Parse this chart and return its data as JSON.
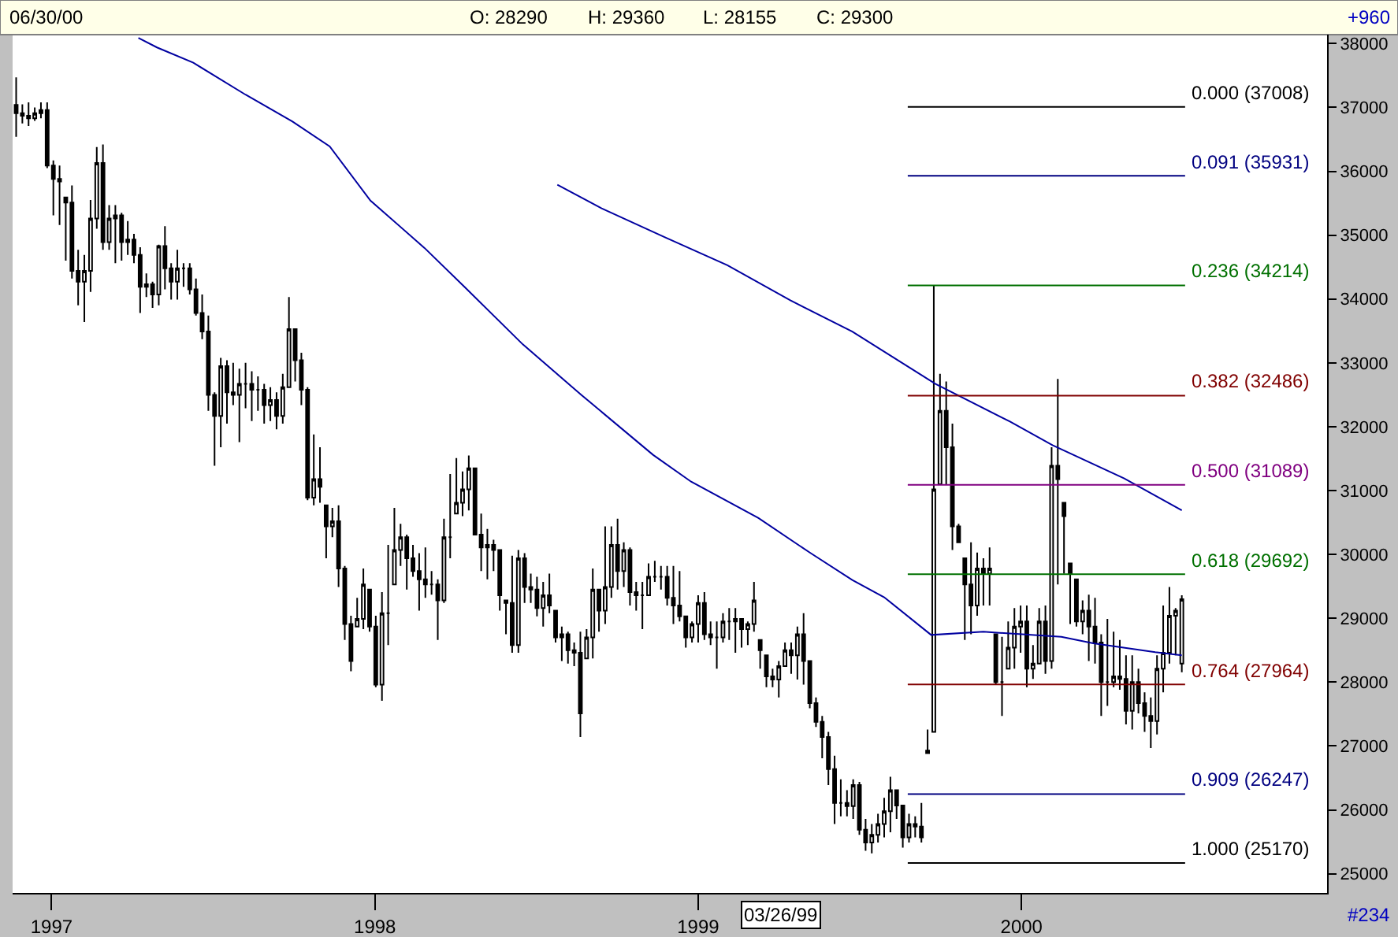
{
  "chart_data": {
    "type": "candlestick",
    "color": "#000000",
    "x": [
      "1996-11-22",
      "1996-11-29",
      "1996-12-06",
      "1996-12-13",
      "1996-12-20",
      "1996-12-27",
      "1997-01-03",
      "1997-01-10",
      "1997-01-17",
      "1997-01-24",
      "1997-01-31",
      "1997-02-07",
      "1997-02-14",
      "1997-02-21",
      "1997-02-28",
      "1997-03-07",
      "1997-03-14",
      "1997-03-21",
      "1997-03-28",
      "1997-04-04",
      "1997-04-11",
      "1997-04-18",
      "1997-04-25",
      "1997-05-02",
      "1997-05-09",
      "1997-05-16",
      "1997-05-23",
      "1997-05-30",
      "1997-06-06",
      "1997-06-13",
      "1997-06-20",
      "1997-06-27",
      "1997-07-04",
      "1997-07-11",
      "1997-07-18",
      "1997-07-25",
      "1997-08-01",
      "1997-08-08",
      "1997-08-15",
      "1997-08-22",
      "1997-08-29",
      "1997-09-05",
      "1997-09-12",
      "1997-09-19",
      "1997-09-26",
      "1997-10-03",
      "1997-10-10",
      "1997-10-17",
      "1997-10-24",
      "1997-10-31",
      "1997-11-07",
      "1997-11-14",
      "1997-11-21",
      "1997-11-28",
      "1997-12-05",
      "1997-12-12",
      "1997-12-19",
      "1997-12-26",
      "1998-01-02",
      "1998-01-09",
      "1998-01-16",
      "1998-01-23",
      "1998-01-30",
      "1998-02-06",
      "1998-02-13",
      "1998-02-20",
      "1998-02-27",
      "1998-03-06",
      "1998-03-13",
      "1998-03-20",
      "1998-03-27",
      "1998-04-03",
      "1998-04-10",
      "1998-04-17",
      "1998-04-24",
      "1998-05-01",
      "1998-05-08",
      "1998-05-15",
      "1998-05-22",
      "1998-05-29",
      "1998-06-05",
      "1998-06-12",
      "1998-06-19",
      "1998-06-26",
      "1998-07-03",
      "1998-07-10",
      "1998-07-17",
      "1998-07-24",
      "1998-07-31",
      "1998-08-07",
      "1998-08-14",
      "1998-08-21",
      "1998-08-28",
      "1998-09-04",
      "1998-09-11",
      "1998-09-18",
      "1998-09-25",
      "1998-10-02",
      "1998-10-09",
      "1998-10-16",
      "1998-10-23",
      "1998-10-30",
      "1998-11-06",
      "1998-11-13",
      "1998-11-20",
      "1998-11-27",
      "1998-12-04",
      "1998-12-11",
      "1998-12-18",
      "1998-12-25",
      "1999-01-01",
      "1999-01-08",
      "1999-01-15",
      "1999-01-22",
      "1999-01-29",
      "1999-02-05",
      "1999-02-12",
      "1999-02-19",
      "1999-02-26",
      "1999-03-05",
      "1999-03-12",
      "1999-03-19",
      "1999-03-26",
      "1999-04-02",
      "1999-04-09",
      "1999-04-16",
      "1999-04-23",
      "1999-04-30",
      "1999-05-07",
      "1999-05-14",
      "1999-05-21",
      "1999-05-28",
      "1999-06-04",
      "1999-06-11",
      "1999-06-18",
      "1999-06-25",
      "1999-07-02",
      "1999-07-09",
      "1999-07-16",
      "1999-07-23",
      "1999-07-30",
      "1999-08-06",
      "1999-08-13",
      "1999-08-20",
      "1999-08-27",
      "1999-09-03",
      "1999-09-10",
      "1999-09-17",
      "1999-09-24",
      "1999-10-01",
      "1999-10-08",
      "1999-10-15",
      "1999-10-22",
      "1999-10-29",
      "1999-11-05",
      "1999-11-12",
      "1999-11-19",
      "1999-11-26",
      "1999-12-03",
      "1999-12-10",
      "1999-12-17",
      "1999-12-24",
      "1999-12-31",
      "2000-01-07",
      "2000-01-14",
      "2000-01-21",
      "2000-01-28",
      "2000-02-04",
      "2000-02-11",
      "2000-02-18",
      "2000-02-25",
      "2000-03-03",
      "2000-03-10",
      "2000-03-17",
      "2000-03-24",
      "2000-03-31",
      "2000-04-07",
      "2000-04-14",
      "2000-04-21",
      "2000-04-28",
      "2000-05-05",
      "2000-05-12",
      "2000-05-19",
      "2000-05-26",
      "2000-06-02",
      "2000-06-09",
      "2000-06-16",
      "2000-06-23",
      "2000-06-30"
    ],
    "ohlc": [
      [
        37040,
        37470,
        36540,
        36910
      ],
      [
        36910,
        37050,
        36750,
        36870
      ],
      [
        36870,
        37080,
        36710,
        36830
      ],
      [
        36830,
        37000,
        36790,
        36910
      ],
      [
        36910,
        37080,
        36830,
        36960
      ],
      [
        36960,
        37080,
        36050,
        36090
      ],
      [
        36090,
        36170,
        35310,
        35880
      ],
      [
        35880,
        36090,
        35160,
        35840
      ],
      [
        35590,
        35590,
        34600,
        35510
      ],
      [
        35510,
        35780,
        34320,
        34440
      ],
      [
        34440,
        34770,
        33900,
        34270
      ],
      [
        34270,
        34690,
        33640,
        34440
      ],
      [
        34440,
        35550,
        34110,
        35260
      ],
      [
        35260,
        36380,
        35100,
        36130
      ],
      [
        36130,
        36420,
        34770,
        34890
      ],
      [
        34890,
        35470,
        34770,
        35260
      ],
      [
        35260,
        35470,
        34560,
        35310
      ],
      [
        35310,
        35350,
        34600,
        34890
      ],
      [
        34890,
        35220,
        34690,
        34930
      ],
      [
        34930,
        35020,
        34560,
        34690
      ],
      [
        34690,
        34810,
        33780,
        34190
      ],
      [
        34190,
        34400,
        34030,
        34230
      ],
      [
        34230,
        34270,
        33860,
        34070
      ],
      [
        34070,
        34850,
        33900,
        34830
      ],
      [
        34830,
        35140,
        34150,
        34480
      ],
      [
        34480,
        34560,
        33990,
        34270
      ],
      [
        34270,
        34770,
        33990,
        34480
      ],
      [
        34480,
        34560,
        34190,
        34480
      ],
      [
        34480,
        34560,
        34070,
        34150
      ],
      [
        34150,
        34320,
        33740,
        33780
      ],
      [
        33780,
        34070,
        33370,
        33490
      ],
      [
        33490,
        33740,
        32250,
        32500
      ],
      [
        32500,
        32540,
        31390,
        32170
      ],
      [
        32170,
        33080,
        31680,
        32950
      ],
      [
        32950,
        33040,
        32050,
        32540
      ],
      [
        32540,
        33000,
        32340,
        32500
      ],
      [
        32500,
        32910,
        31760,
        32670
      ],
      [
        32670,
        33000,
        32290,
        32670
      ],
      [
        32670,
        32870,
        32090,
        32580
      ],
      [
        32580,
        32790,
        32250,
        32580
      ],
      [
        32580,
        32670,
        32050,
        32340
      ],
      [
        32340,
        32620,
        32090,
        32420
      ],
      [
        32420,
        32540,
        31960,
        32170
      ],
      [
        32170,
        32830,
        32050,
        32620
      ],
      [
        32620,
        34030,
        32620,
        33530
      ],
      [
        33530,
        33530,
        32710,
        33040
      ],
      [
        33040,
        33160,
        32340,
        32580
      ],
      [
        32580,
        32620,
        30850,
        30890
      ],
      [
        30890,
        31880,
        30770,
        31180
      ],
      [
        31180,
        31680,
        30810,
        31060
      ],
      [
        30770,
        30770,
        29940,
        30440
      ],
      [
        30440,
        30730,
        30270,
        30520
      ],
      [
        30520,
        30770,
        29490,
        29780
      ],
      [
        29780,
        29820,
        28660,
        28910
      ],
      [
        28910,
        29040,
        28170,
        28330
      ],
      [
        28870,
        29320,
        28870,
        28990
      ],
      [
        28990,
        29780,
        28830,
        29530
      ],
      [
        29450,
        29450,
        28790,
        28870
      ],
      [
        28870,
        29040,
        27920,
        27960
      ],
      [
        27960,
        29410,
        27710,
        29080
      ],
      [
        29080,
        30150,
        28580,
        29080
      ],
      [
        29530,
        30730,
        29530,
        30070
      ],
      [
        30070,
        30480,
        29820,
        30270
      ],
      [
        30270,
        30310,
        29450,
        29940
      ],
      [
        29940,
        30150,
        29650,
        29740
      ],
      [
        29740,
        30020,
        29120,
        29610
      ],
      [
        29610,
        30110,
        29320,
        29530
      ],
      [
        29530,
        29740,
        29370,
        29530
      ],
      [
        29530,
        29610,
        28660,
        29280
      ],
      [
        29280,
        30560,
        29240,
        30270
      ],
      [
        30270,
        31260,
        29940,
        30270
      ],
      [
        30640,
        31510,
        30640,
        30810
      ],
      [
        30810,
        31300,
        30600,
        31020
      ],
      [
        31020,
        31550,
        30690,
        31350
      ],
      [
        31350,
        31350,
        30310,
        30310
      ],
      [
        30310,
        30640,
        29740,
        30110
      ],
      [
        30110,
        30400,
        29610,
        30150
      ],
      [
        30150,
        30230,
        29740,
        30070
      ],
      [
        30070,
        30070,
        29120,
        29360
      ],
      [
        29280,
        29280,
        28750,
        29240
      ],
      [
        29240,
        29980,
        28460,
        28580
      ],
      [
        28580,
        30070,
        28460,
        29940
      ],
      [
        29940,
        30020,
        29240,
        29490
      ],
      [
        29490,
        29700,
        29240,
        29450
      ],
      [
        29450,
        29650,
        29030,
        29160
      ],
      [
        29160,
        29570,
        28870,
        29360
      ],
      [
        29360,
        29700,
        29080,
        29200
      ],
      [
        29120,
        29120,
        28620,
        28700
      ],
      [
        28700,
        28870,
        28330,
        28750
      ],
      [
        28750,
        28790,
        28290,
        28500
      ],
      [
        28500,
        28620,
        28250,
        28460
      ],
      [
        28460,
        28790,
        27140,
        27510
      ],
      [
        28370,
        28830,
        28370,
        28700
      ],
      [
        28700,
        29780,
        28370,
        29450
      ],
      [
        29450,
        29450,
        28790,
        29120
      ],
      [
        29120,
        30440,
        28910,
        29490
      ],
      [
        29490,
        30440,
        29320,
        30150
      ],
      [
        30150,
        30560,
        29450,
        29740
      ],
      [
        29740,
        30190,
        29490,
        30070
      ],
      [
        30070,
        30110,
        29200,
        29410
      ],
      [
        29410,
        29570,
        29120,
        29360
      ],
      [
        29360,
        29570,
        28830,
        29360
      ],
      [
        29360,
        29860,
        29360,
        29650
      ],
      [
        29650,
        29900,
        29570,
        29650
      ],
      [
        29650,
        29820,
        29450,
        29650
      ],
      [
        29650,
        29820,
        29200,
        29320
      ],
      [
        29320,
        29820,
        28910,
        29200
      ],
      [
        29200,
        29740,
        28950,
        29030
      ],
      [
        29030,
        29030,
        28540,
        28700
      ],
      [
        28700,
        28950,
        28620,
        28910
      ],
      [
        28910,
        29360,
        28620,
        29240
      ],
      [
        29240,
        29410,
        28660,
        28750
      ],
      [
        28750,
        28950,
        28580,
        28700
      ],
      [
        28700,
        28950,
        28210,
        28700
      ],
      [
        28700,
        29080,
        28620,
        28950
      ],
      [
        28950,
        29160,
        28660,
        28950
      ],
      [
        28950,
        29160,
        28460,
        28990
      ],
      [
        28990,
        28990,
        28540,
        28830
      ],
      [
        28830,
        28950,
        28580,
        28910
      ],
      [
        28910,
        29570,
        28790,
        29280
      ],
      [
        28660,
        28660,
        28210,
        28500
      ],
      [
        28420,
        28420,
        27920,
        28090
      ],
      [
        28090,
        28210,
        27920,
        28040
      ],
      [
        28040,
        28330,
        27760,
        28250
      ],
      [
        28250,
        28620,
        28250,
        28500
      ],
      [
        28500,
        28620,
        28130,
        28420
      ],
      [
        28420,
        28870,
        28040,
        28750
      ],
      [
        28750,
        29080,
        27960,
        28330
      ],
      [
        28330,
        28330,
        27590,
        27670
      ],
      [
        27670,
        27760,
        27300,
        27380
      ],
      [
        27380,
        27470,
        26810,
        27140
      ],
      [
        27140,
        27220,
        26390,
        26640
      ],
      [
        26640,
        26850,
        25780,
        26110
      ],
      [
        26110,
        26480,
        25900,
        26110
      ],
      [
        26110,
        26310,
        25900,
        26060
      ],
      [
        26060,
        26480,
        25860,
        26390
      ],
      [
        26390,
        26440,
        25610,
        25690
      ],
      [
        25690,
        25860,
        25360,
        25490
      ],
      [
        25490,
        25780,
        25320,
        25610
      ],
      [
        25610,
        25940,
        25490,
        25780
      ],
      [
        25780,
        26190,
        25570,
        25980
      ],
      [
        25980,
        26520,
        25650,
        26310
      ],
      [
        26310,
        26310,
        25860,
        26070
      ],
      [
        26070,
        26070,
        25410,
        25570
      ],
      [
        25570,
        25940,
        25490,
        25780
      ],
      [
        25780,
        25900,
        25570,
        25740
      ],
      [
        25740,
        26110,
        25490,
        25570
      ],
      [
        26890,
        27260,
        26890,
        26930
      ],
      [
        27220,
        34210,
        27220,
        31020
      ],
      [
        31100,
        32830,
        31100,
        32250
      ],
      [
        32250,
        32710,
        31100,
        31680
      ],
      [
        31680,
        32050,
        30070,
        30440
      ],
      [
        30440,
        30480,
        30190,
        30190
      ],
      [
        29940,
        29940,
        28660,
        29530
      ],
      [
        29530,
        30190,
        28750,
        29200
      ],
      [
        29200,
        30030,
        29040,
        29780
      ],
      [
        29780,
        29940,
        29200,
        29700
      ],
      [
        29700,
        30110,
        29200,
        29780
      ],
      [
        28750,
        28750,
        27960,
        28000
      ],
      [
        28000,
        28710,
        27470,
        28000
      ],
      [
        28210,
        28950,
        28210,
        28540
      ],
      [
        28540,
        29160,
        28210,
        28870
      ],
      [
        28870,
        29200,
        28460,
        28950
      ],
      [
        28950,
        29200,
        27920,
        28210
      ],
      [
        28210,
        28580,
        28050,
        28290
      ],
      [
        28290,
        29160,
        28290,
        28950
      ],
      [
        28950,
        29200,
        28130,
        28330
      ],
      [
        28330,
        31680,
        28210,
        31390
      ],
      [
        31390,
        32750,
        29530,
        31180
      ],
      [
        30810,
        30810,
        29700,
        30600
      ],
      [
        29860,
        29860,
        28910,
        29700
      ],
      [
        29610,
        29610,
        28870,
        28950
      ],
      [
        28950,
        29280,
        28750,
        29120
      ],
      [
        29120,
        29370,
        28330,
        28870
      ],
      [
        28870,
        29320,
        28290,
        28620
      ],
      [
        28620,
        28750,
        27470,
        28000
      ],
      [
        28000,
        28990,
        27630,
        28000
      ],
      [
        28000,
        28790,
        27920,
        28090
      ],
      [
        28090,
        28660,
        27880,
        28050
      ],
      [
        28050,
        28420,
        27340,
        27550
      ],
      [
        27550,
        28420,
        27260,
        28000
      ],
      [
        28000,
        28210,
        27510,
        27670
      ],
      [
        27670,
        27840,
        27220,
        27470
      ],
      [
        27470,
        27760,
        26970,
        27390
      ],
      [
        27390,
        28420,
        27180,
        28210
      ],
      [
        28210,
        29200,
        27840,
        28460
      ],
      [
        28460,
        29490,
        28290,
        29040
      ],
      [
        29040,
        29160,
        28420,
        29120
      ],
      [
        28290,
        29360,
        28155,
        29300
      ]
    ],
    "series": [
      {
        "type": "line",
        "color": "#0000a0",
        "x": [
          "1997-04-09",
          "1997-04-30",
          "1997-06-10",
          "1997-08-08",
          "1997-09-30",
          "1997-11-11",
          "1997-12-27",
          "1998-02-26",
          "1998-04-13",
          "1998-06-17",
          "1998-08-22",
          "1998-11-11",
          "1998-12-24",
          "1999-03-10",
          "1999-05-08",
          "1999-06-24",
          "1999-07-30",
          "1999-09-21",
          "1999-11-19",
          "2000-02-15",
          "2000-03-22",
          "2000-05-31",
          "2000-06-30"
        ],
        "values": [
          38090,
          37940,
          37700,
          37200,
          36780,
          36390,
          35540,
          34800,
          34180,
          33290,
          32500,
          31560,
          31140,
          30570,
          30020,
          29600,
          29330,
          28740,
          28790,
          28710,
          28610,
          28470,
          28420
        ]
      },
      {
        "type": "line",
        "color": "#0000a0",
        "x": [
          "1998-07-26",
          "1998-09-14",
          "1998-11-24",
          "1999-02-03",
          "1999-04-15",
          "1999-06-24",
          "1999-09-26",
          "1999-12-19",
          "2000-02-05",
          "2000-04-26",
          "2000-06-30"
        ],
        "values": [
          35790,
          35420,
          34970,
          34530,
          33980,
          33490,
          32670,
          32080,
          31710,
          31190,
          30690
        ]
      }
    ],
    "ref_lines": [
      {
        "axis": "y",
        "value": 37008,
        "label": "0.000 (37008)",
        "color": "#000000"
      },
      {
        "axis": "y",
        "value": 35931,
        "label": "0.091 (35931)",
        "color": "#000080"
      },
      {
        "axis": "y",
        "value": 34214,
        "label": "0.236 (34214)",
        "color": "#007000"
      },
      {
        "axis": "y",
        "value": 32486,
        "label": "0.382 (32486)",
        "color": "#800000"
      },
      {
        "axis": "y",
        "value": 31089,
        "label": "0.500 (31089)",
        "color": "#800080"
      },
      {
        "axis": "y",
        "value": 29692,
        "label": "0.618 (29692)",
        "color": "#007000"
      },
      {
        "axis": "y",
        "value": 27964,
        "label": "0.764 (27964)",
        "color": "#800000"
      },
      {
        "axis": "y",
        "value": 26247,
        "label": "0.909 (26247)",
        "color": "#000080"
      },
      {
        "axis": "y",
        "value": 25170,
        "label": "1.000 (25170)",
        "color": "#000000"
      }
    ],
    "annotations": [
      "06/30/00",
      "O: 28290",
      "H: 29360",
      "L: 28155",
      "C: 29300",
      "+960",
      "#234",
      "03/26/99"
    ],
    "xlim": [
      "1996-11-18",
      "2000-12-11"
    ],
    "xticks": [
      {
        "value": "1997-01-01",
        "label": "1997"
      },
      {
        "value": "1998-01-01",
        "label": "1998"
      },
      {
        "value": "1999-01-01",
        "label": "1999"
      },
      {
        "value": "2000-01-01",
        "label": "2000"
      }
    ],
    "ylim": [
      24700,
      38140
    ],
    "yticks": [
      25000,
      26000,
      27000,
      28000,
      29000,
      30000,
      31000,
      32000,
      33000,
      34000,
      35000,
      36000,
      37000,
      38000
    ],
    "grid": false
  }
}
